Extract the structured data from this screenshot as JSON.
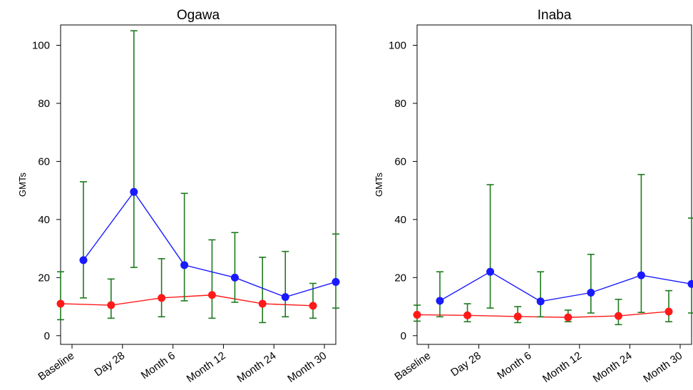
{
  "chart_data": [
    {
      "type": "line",
      "title": "Ogawa",
      "ylabel": "GMTs",
      "xlabel": "",
      "categories": [
        "Baseline",
        "Day 28",
        "Month 6",
        "Month 12",
        "Month 24",
        "Month 30"
      ],
      "ylim": [
        -3,
        107
      ],
      "yticks": [
        0,
        20,
        40,
        60,
        80,
        100
      ],
      "grid": false,
      "series": [
        {
          "color": "#ff1a1a",
          "marker_offset": -1,
          "values": [
            11,
            10.5,
            13,
            14,
            11,
            10.3
          ],
          "ci_low": [
            5.5,
            6,
            6.5,
            6,
            4.5,
            6
          ],
          "ci_high": [
            22,
            19.5,
            26.5,
            33,
            27,
            18
          ]
        },
        {
          "color": "#1a1aff",
          "marker_offset": 1,
          "values": [
            26,
            49.5,
            24.3,
            20,
            13.3,
            18.5
          ],
          "ci_low": [
            13,
            23.5,
            12,
            11.5,
            6.5,
            9.5
          ],
          "ci_high": [
            53,
            105,
            49,
            35.5,
            29,
            35
          ]
        }
      ],
      "errorbar_color": "#1e7a1e"
    },
    {
      "type": "line",
      "title": "Inaba",
      "ylabel": "GMTs",
      "xlabel": "",
      "categories": [
        "Baseline",
        "Day 28",
        "Month 6",
        "Month 12",
        "Month 24",
        "Month 30"
      ],
      "ylim": [
        -3,
        107
      ],
      "yticks": [
        0,
        20,
        40,
        60,
        80,
        100
      ],
      "grid": false,
      "series": [
        {
          "color": "#ff1a1a",
          "marker_offset": -1,
          "values": [
            7.2,
            7,
            6.6,
            6.3,
            6.8,
            8.3
          ],
          "ci_low": [
            5,
            4.8,
            4.5,
            4.8,
            3.8,
            4.8
          ],
          "ci_high": [
            10.5,
            11,
            10,
            8.8,
            12.5,
            15.5
          ]
        },
        {
          "color": "#1a1aff",
          "marker_offset": 1,
          "values": [
            12,
            22,
            11.8,
            14.8,
            20.8,
            17.8
          ],
          "ci_low": [
            6.5,
            9.5,
            6.5,
            7.8,
            8,
            7.8
          ],
          "ci_high": [
            22,
            52,
            22,
            28,
            55.5,
            40.5
          ]
        }
      ],
      "errorbar_color": "#1e7a1e"
    }
  ]
}
